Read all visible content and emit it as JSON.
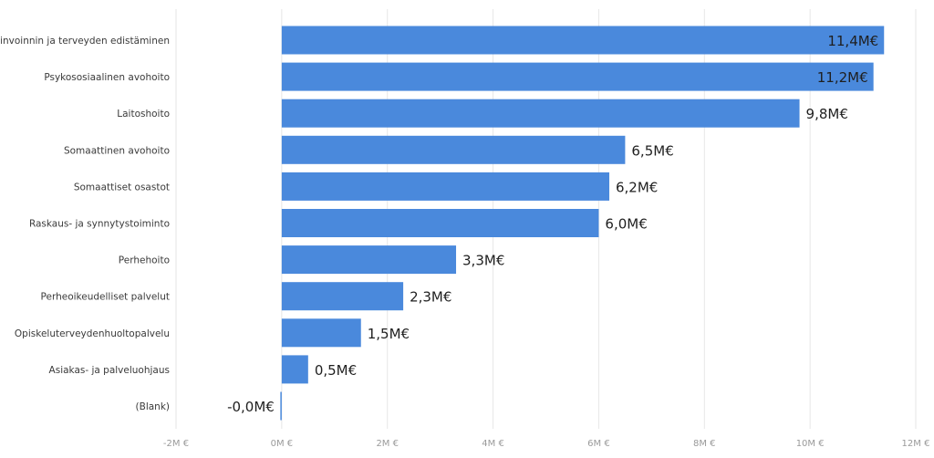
{
  "chart_data": {
    "type": "bar",
    "orientation": "horizontal",
    "title": "",
    "xlabel": "",
    "ylabel": "",
    "categories": [
      "Hyvinvoinnin ja terveyden edistäminen",
      "Psykososiaalinen avohoito",
      "Laitoshoito",
      "Somaattinen avohoito",
      "Somaattiset osastot",
      "Raskaus- ja synnytystoiminto",
      "Perhehoito",
      "Perheoikeudelliset palvelut",
      "Opiskeluterveydenhuoltopalvelu",
      "Asiakas- ja palveluohjaus",
      "(Blank)"
    ],
    "values": [
      11.4,
      11.2,
      9.8,
      6.5,
      6.2,
      6.0,
      3.3,
      2.3,
      1.5,
      0.5,
      -0.02
    ],
    "data_labels": [
      "11,4M€",
      "11,2M€",
      "9,8M€",
      "6,5M€",
      "6,2M€",
      "6,0M€",
      "3,3M€",
      "2,3M€",
      "1,5M€",
      "0,5M€",
      "-0,0M€"
    ],
    "xlim": [
      -2,
      12
    ],
    "xticks": [
      -2,
      0,
      2,
      4,
      6,
      8,
      10,
      12
    ],
    "xtick_labels": [
      "-2M €",
      "0M €",
      "2M €",
      "4M €",
      "6M €",
      "8M €",
      "10M €",
      "12M €"
    ],
    "grid": true,
    "legend": "none",
    "colors": {
      "bar": "#4a89dc",
      "grid": "#e6e6e6",
      "category_text": "#3a3a3a",
      "tick_text": "#9a9a9a",
      "data_label_text": "#1f1f1f"
    }
  }
}
